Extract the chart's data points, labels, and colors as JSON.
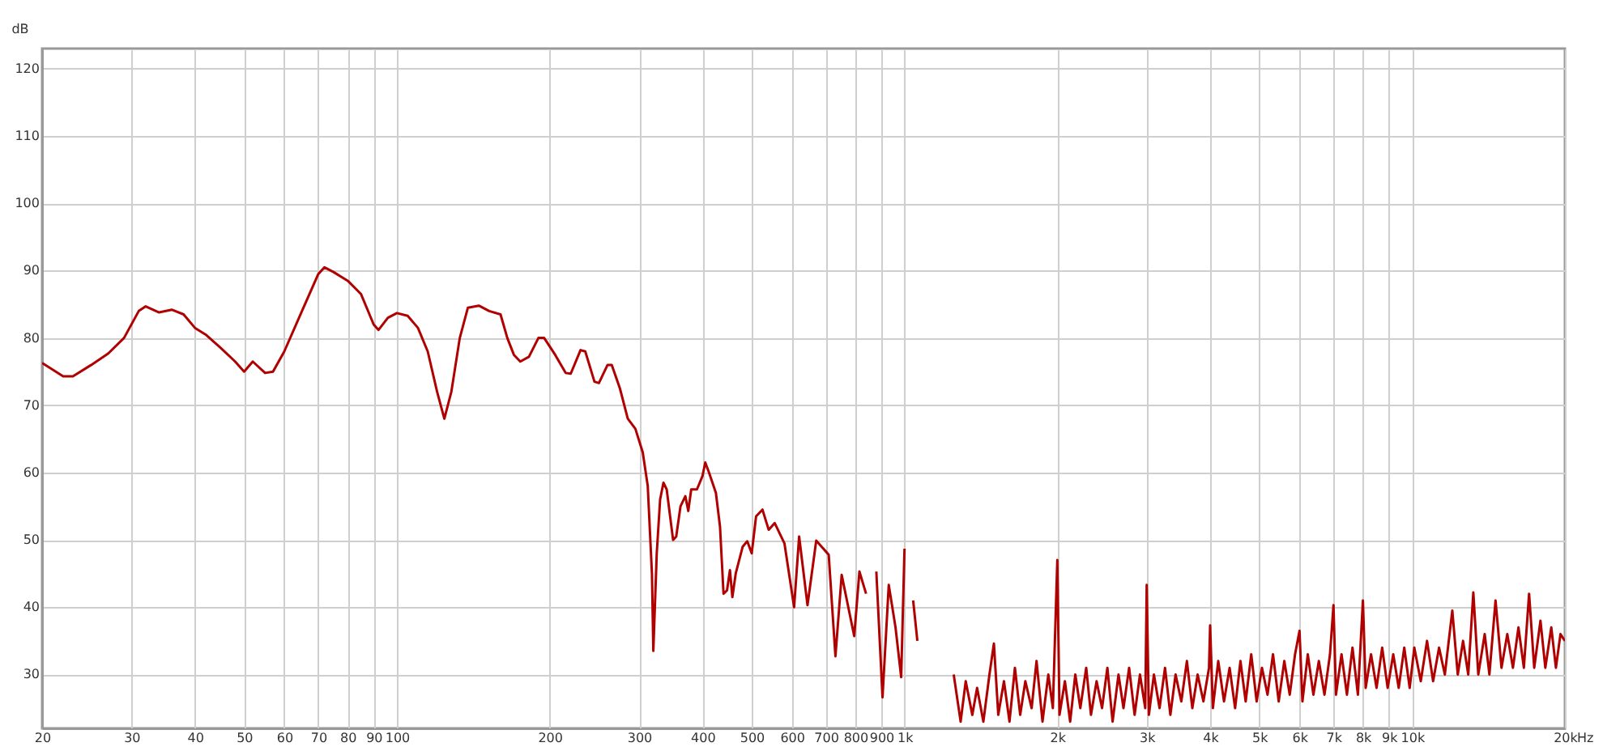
{
  "chart_data": {
    "type": "line",
    "ylabel": "dB",
    "log": "x",
    "grid": true,
    "xlim": [
      20,
      20000
    ],
    "ylim": [
      22,
      123
    ],
    "xticks": [
      20,
      30,
      40,
      50,
      60,
      70,
      80,
      90,
      100,
      200,
      300,
      400,
      500,
      600,
      700,
      800,
      900,
      {
        "value": 1000,
        "label": "1k"
      },
      {
        "value": 2000,
        "label": "2k"
      },
      {
        "value": 3000,
        "label": "3k"
      },
      {
        "value": 4000,
        "label": "4k"
      },
      {
        "value": 5000,
        "label": "5k"
      },
      {
        "value": 6000,
        "label": "6k"
      },
      {
        "value": 7000,
        "label": "7k"
      },
      {
        "value": 8000,
        "label": "8k"
      },
      {
        "value": 9000,
        "label": "9k"
      },
      {
        "value": 10000,
        "label": "10k"
      },
      {
        "value": 20000,
        "label": "20k"
      }
    ],
    "xlabel": "Hz",
    "yticks": [
      30,
      40,
      50,
      60,
      70,
      80,
      90,
      100,
      110,
      120
    ],
    "x": [
      20,
      22,
      23,
      25,
      27,
      29,
      31,
      32,
      34,
      36,
      38,
      40,
      42,
      45,
      48,
      50,
      52,
      55,
      57,
      60,
      65,
      70,
      72,
      75,
      80,
      85,
      90,
      92,
      96,
      100,
      105,
      110,
      115,
      120,
      124,
      128,
      133,
      138,
      145,
      152,
      160,
      165,
      170,
      175,
      182,
      190,
      195,
      205,
      215,
      220,
      230,
      235,
      245,
      250,
      260,
      265,
      275,
      285,
      295,
      305,
      312,
      318,
      320,
      325,
      330,
      335,
      340,
      350,
      355,
      362,
      370,
      375,
      380,
      390,
      400,
      405,
      412,
      425,
      433,
      440,
      447,
      453,
      458,
      465,
      480,
      490,
      500,
      510,
      525,
      540,
      555,
      580,
      606,
      620,
      644,
      670,
      709,
      731,
      752,
      796,
      815,
      840,
      855,
      880,
      905,
      931,
      960,
      985,
      1000,
      1005,
      1040,
      1060,
      1080,
      1250,
      1290,
      1320,
      1360,
      1390,
      1430,
      1470,
      1500,
      1530,
      1570,
      1610,
      1650,
      1690,
      1730,
      1780,
      1820,
      1870,
      1920,
      1960,
      2000,
      2020,
      2070,
      2120,
      2170,
      2220,
      2280,
      2330,
      2390,
      2450,
      2510,
      2570,
      2640,
      2700,
      2770,
      2840,
      2910,
      2980,
      3000,
      3030,
      3100,
      3180,
      3260,
      3340,
      3420,
      3510,
      3600,
      3690,
      3780,
      3880,
      3980,
      4000,
      4050,
      4150,
      4260,
      4370,
      4480,
      4590,
      4700,
      4820,
      4940,
      5060,
      5190,
      5320,
      5460,
      5600,
      5740,
      5880,
      6000,
      6080,
      6230,
      6390,
      6550,
      6720,
      6890,
      7000,
      7080,
      7260,
      7440,
      7630,
      7820,
      8000,
      8100,
      8300,
      8510,
      8730,
      8950,
      9180,
      9410,
      9650,
      9890,
      10100,
      10400,
      10700,
      11000,
      11300,
      11600,
      12000,
      12300,
      12600,
      12900,
      13200,
      13500,
      13900,
      14200,
      14600,
      15000,
      15400,
      15800,
      16200,
      16600,
      17000,
      17400,
      17900,
      18300,
      18800,
      19200,
      19600,
      20000
    ],
    "series": [
      {
        "color": "#b00000",
        "values": [
          76.3,
          74.3,
          74.3,
          76,
          77.7,
          80,
          84,
          84.7,
          83.8,
          84.2,
          83.5,
          81.5,
          80.5,
          78.5,
          76.5,
          75,
          76.5,
          74.8,
          75,
          78,
          84,
          89.5,
          90.5,
          89.8,
          88.5,
          86.5,
          82,
          81.2,
          83,
          83.7,
          83.3,
          81.5,
          78,
          72,
          68,
          72,
          80,
          84.5,
          84.8,
          84,
          83.5,
          80,
          77.5,
          76.5,
          77.2,
          80,
          80,
          77.5,
          74.8,
          74.7,
          78.2,
          78,
          73.5,
          73.3,
          76,
          76,
          72.5,
          68,
          66.5,
          63,
          58,
          45,
          33.5,
          48,
          56,
          58.5,
          57.5,
          50,
          50.5,
          55,
          56.5,
          54.3,
          57.5,
          57.5,
          59.5,
          61.5,
          60,
          57,
          52,
          42,
          42.5,
          45.5,
          41.5,
          45,
          49,
          49.8,
          48,
          53.5,
          54.5,
          51.5,
          52.5,
          49.5,
          40,
          50.5,
          40.3,
          49.9,
          47.8,
          32.7,
          44.8,
          35.7,
          45.3,
          42,
          null,
          45.3,
          26.6,
          43.3,
          37,
          29.6,
          48.7,
          null,
          41,
          35,
          null,
          30,
          23,
          29,
          24,
          28,
          23,
          30,
          34.6,
          24,
          29,
          23,
          31,
          24,
          29,
          25,
          32,
          23,
          30,
          25,
          47,
          24,
          29,
          23,
          30,
          25,
          31,
          24,
          29,
          25,
          31,
          23,
          30,
          25,
          31,
          24,
          30,
          25,
          43.3,
          24,
          30,
          25,
          31,
          24,
          30,
          26,
          32,
          25,
          30,
          26,
          31,
          37.3,
          25,
          32,
          26,
          31,
          25,
          32,
          26,
          33,
          26,
          31,
          27,
          33,
          26,
          32,
          27,
          33,
          36.5,
          26,
          33,
          27,
          32,
          27,
          33,
          40.3,
          27,
          33,
          27,
          34,
          27,
          41,
          28,
          33,
          28,
          34,
          28,
          33,
          28,
          34,
          28,
          34,
          29,
          35,
          29,
          34,
          30,
          39.5,
          30,
          35,
          30,
          42.2,
          30,
          36,
          30,
          41,
          31,
          36,
          31,
          37,
          31,
          42,
          31,
          38,
          31,
          37,
          31,
          36,
          35
        ]
      }
    ]
  }
}
